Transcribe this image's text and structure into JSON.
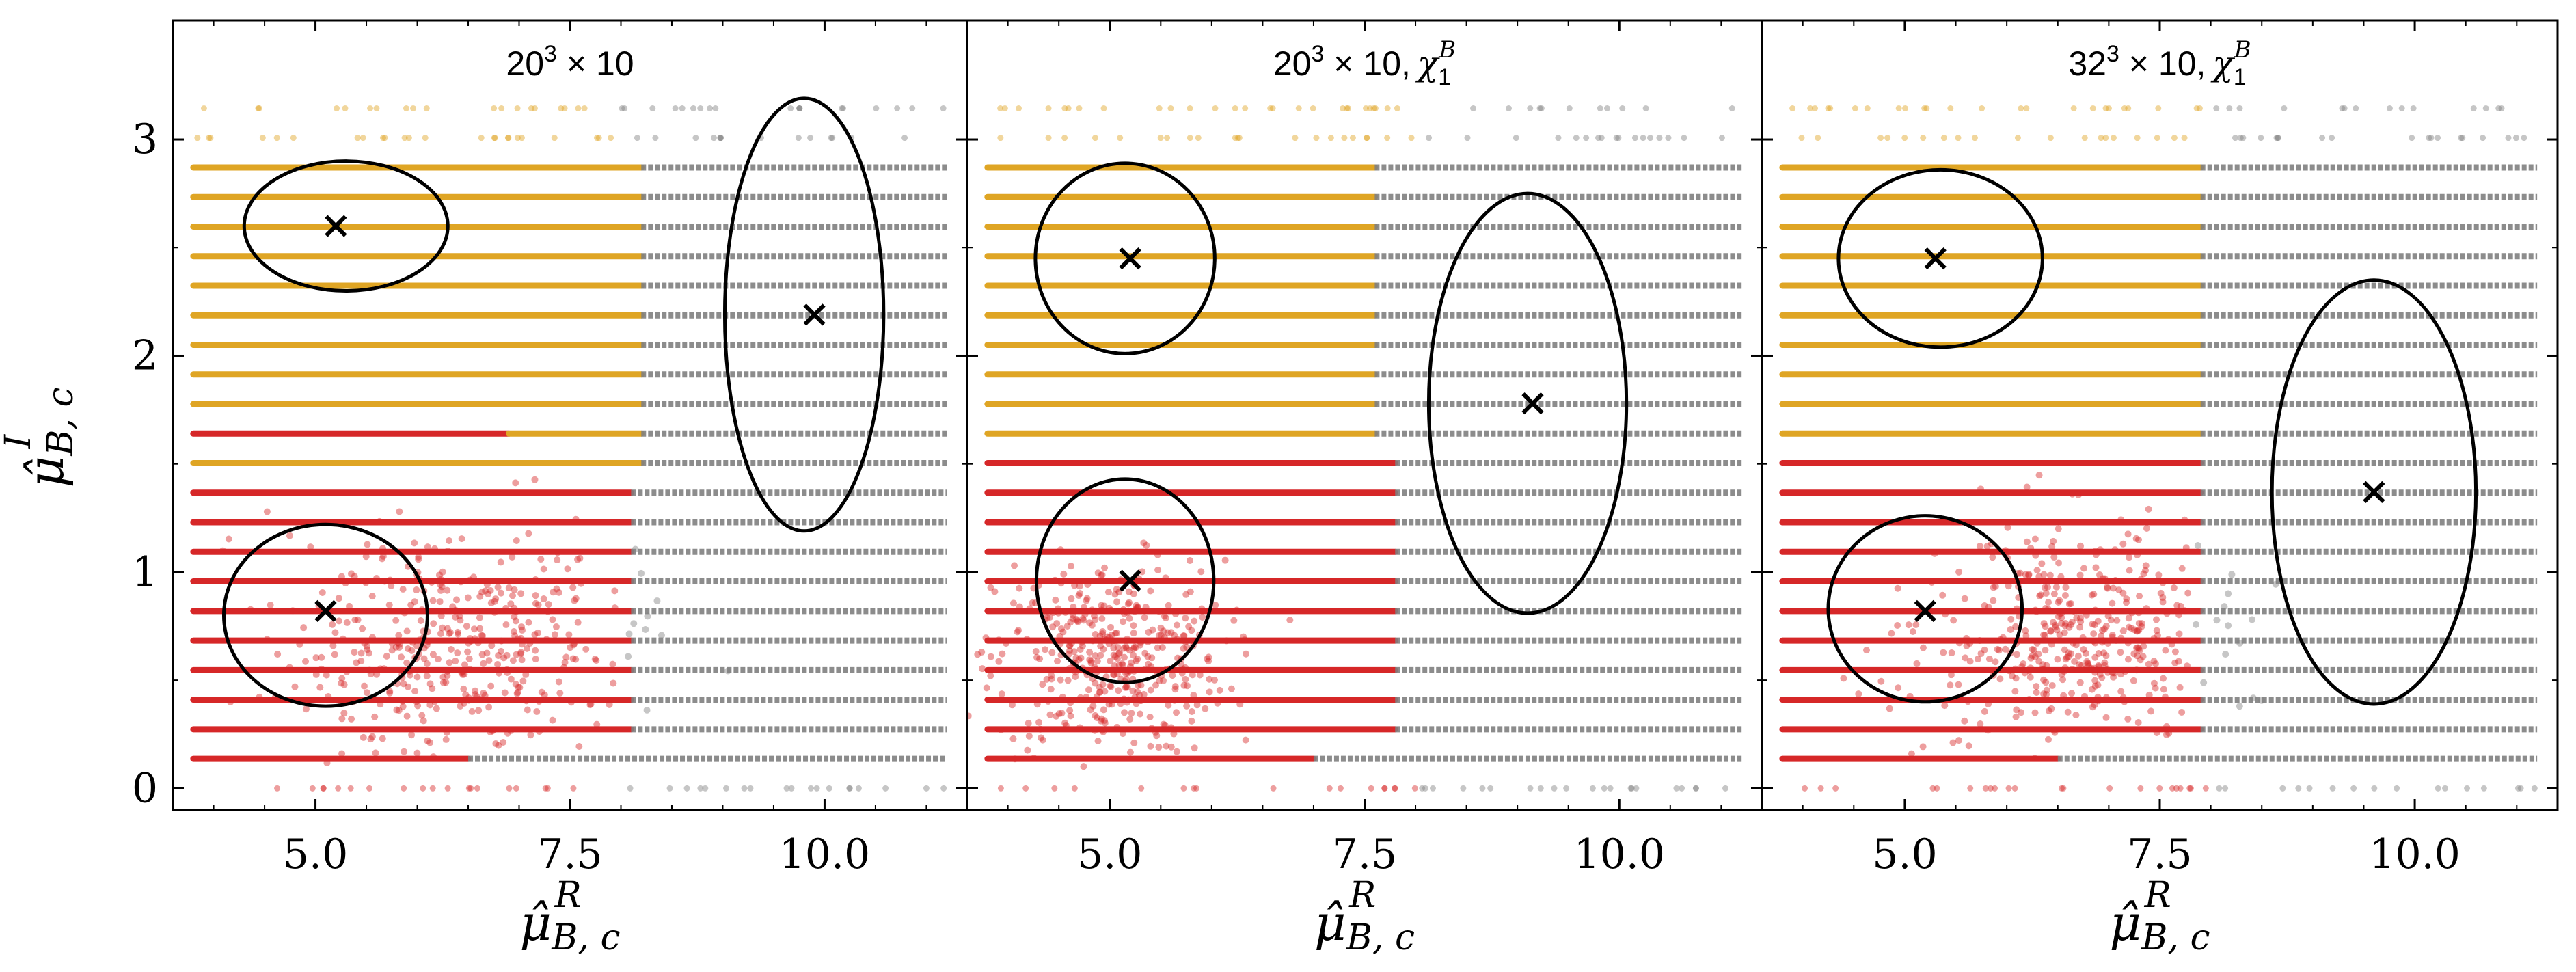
{
  "chart_data": {
    "type": "scatter",
    "figure": "Three side-by-side scatter panels sharing the y-axis",
    "xlabel": "μ̂^R_{B,c}",
    "ylabel": "μ̂^I_{B,c}",
    "x_ticks": [
      "5.0",
      "7.5",
      "10.0"
    ],
    "y_ticks": [
      "0",
      "1",
      "2",
      "3"
    ],
    "xlim": [
      3.6,
      11.4
    ],
    "ylim": [
      -0.1,
      3.55
    ],
    "colors": {
      "red": "#d62728",
      "gold": "#dfa524",
      "gray": "#808080"
    },
    "panels": [
      {
        "title_base": "20",
        "title_exp": "3",
        "title_rest": "× 10",
        "title_chi": "",
        "gold_rows": [
          11,
          21
        ],
        "gold_end": 8.2,
        "red_rows": [
          1,
          12
        ],
        "red_end": 8.1,
        "lowest_row_red_end": 6.5,
        "gold_partial_row": {
          "row": 12,
          "red_end": 6.9
        },
        "cloud": {
          "x": 6.3,
          "y": 0.65,
          "sx": 1.2,
          "sy": 0.2,
          "color": "red"
        },
        "centers": [
          {
            "x": 5.2,
            "y": 2.6
          },
          {
            "x": 9.9,
            "y": 2.19
          },
          {
            "x": 5.1,
            "y": 0.82
          }
        ],
        "ellipses": [
          {
            "cx": 5.3,
            "cy": 2.6,
            "rx": 1.0,
            "ry": 0.3
          },
          {
            "cx": 9.8,
            "cy": 2.19,
            "rx": 0.78,
            "ry": 1.0
          },
          {
            "cx": 5.1,
            "cy": 0.8,
            "rx": 1.0,
            "ry": 0.42
          }
        ]
      },
      {
        "title_base": "20",
        "title_exp": "3",
        "title_rest": "× 10,",
        "title_chi": "χ",
        "gold_rows": [
          12,
          21
        ],
        "gold_end": 7.6,
        "red_rows": [
          1,
          11
        ],
        "red_end": 7.8,
        "lowest_row_red_end": 7.0,
        "gold_partial_row": null,
        "cloud": {
          "x": 5.0,
          "y": 0.6,
          "sx": 0.8,
          "sy": 0.16,
          "color": "red"
        },
        "centers": [
          {
            "x": 5.2,
            "y": 2.45
          },
          {
            "x": 9.15,
            "y": 1.78
          },
          {
            "x": 5.2,
            "y": 0.96
          }
        ],
        "ellipses": [
          {
            "cx": 5.15,
            "cy": 2.45,
            "rx": 0.88,
            "ry": 0.44
          },
          {
            "cx": 9.1,
            "cy": 1.78,
            "rx": 0.97,
            "ry": 0.97
          },
          {
            "cx": 5.15,
            "cy": 0.96,
            "rx": 0.87,
            "ry": 0.47
          }
        ]
      },
      {
        "title_base": "32",
        "title_exp": "3",
        "title_rest": "× 10,",
        "title_chi": "χ",
        "gold_rows": [
          12,
          21
        ],
        "gold_end": 7.9,
        "red_rows": [
          1,
          11
        ],
        "red_end": 7.9,
        "lowest_row_red_end": 6.5,
        "gold_partial_row": null,
        "cloud": {
          "x": 6.6,
          "y": 0.7,
          "sx": 1.0,
          "sy": 0.18,
          "color": "red"
        },
        "centers": [
          {
            "x": 5.3,
            "y": 2.45
          },
          {
            "x": 9.6,
            "y": 1.37
          },
          {
            "x": 5.2,
            "y": 0.82
          }
        ],
        "ellipses": [
          {
            "cx": 5.35,
            "cy": 2.45,
            "rx": 1.0,
            "ry": 0.41
          },
          {
            "cx": 9.6,
            "cy": 1.37,
            "rx": 1.0,
            "ry": 0.98
          },
          {
            "cx": 5.2,
            "cy": 0.83,
            "rx": 0.95,
            "ry": 0.43
          }
        ]
      }
    ],
    "row_spacing": 0.1367,
    "top_sparse_row_color": "gold"
  }
}
